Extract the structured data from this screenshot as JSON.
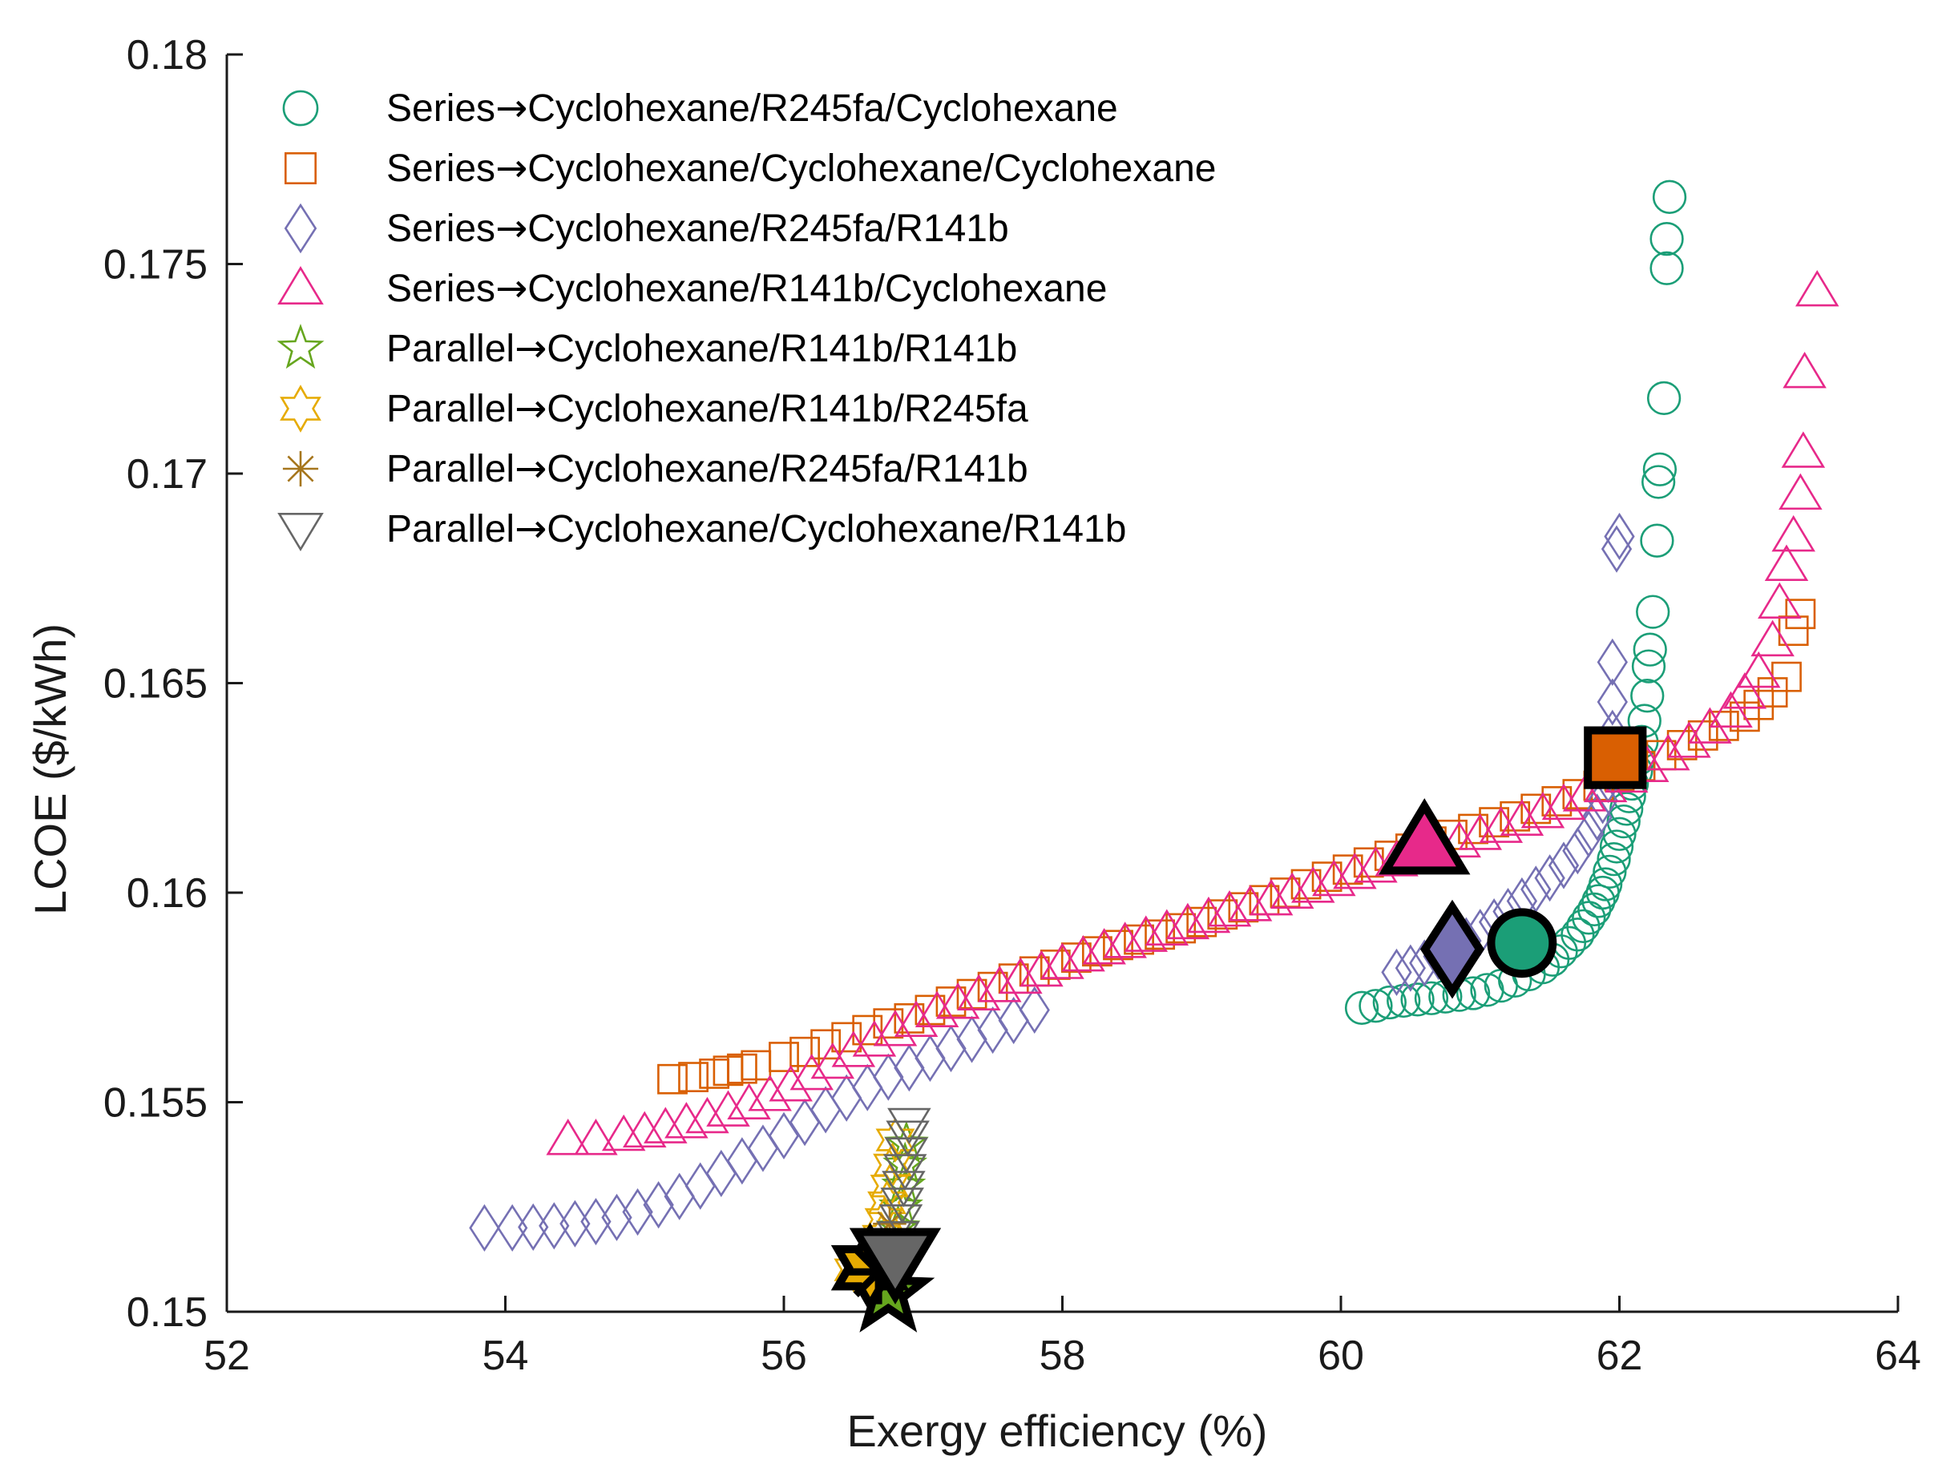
{
  "chart_data": {
    "type": "scatter",
    "title": "",
    "xlabel": "Exergy efficiency (%)",
    "ylabel": "LCOE ($/kWh)",
    "xlim": [
      52,
      64
    ],
    "ylim": [
      0.15,
      0.18
    ],
    "x_ticks": [
      52,
      54,
      56,
      58,
      60,
      62,
      64
    ],
    "x_tick_labels": [
      "52",
      "54",
      "56",
      "58",
      "60",
      "62",
      "64"
    ],
    "y_ticks": [
      0.15,
      0.155,
      0.16,
      0.165,
      0.17,
      0.175,
      0.18
    ],
    "y_tick_labels": [
      "0.15",
      "0.155",
      "0.16",
      "0.165",
      "0.17",
      "0.175",
      "0.18"
    ],
    "grid": false,
    "legend_position": "top-left",
    "legend_arrow": "→",
    "series": [
      {
        "name": "Series→Cyclohexane/R245fa/Cyclohexane",
        "legend_prefix": "Series",
        "legend_suffix": "Cyclohexane/R245fa/Cyclohexane",
        "marker": "circle",
        "color": "#1b9e77",
        "points": [
          [
            60.15,
            0.15725
          ],
          [
            60.25,
            0.1573
          ],
          [
            60.35,
            0.15738
          ],
          [
            60.45,
            0.15742
          ],
          [
            60.55,
            0.15745
          ],
          [
            60.65,
            0.15748
          ],
          [
            60.75,
            0.15752
          ],
          [
            60.85,
            0.15756
          ],
          [
            60.95,
            0.1576
          ],
          [
            61.05,
            0.15768
          ],
          [
            61.15,
            0.15778
          ],
          [
            61.25,
            0.1579
          ],
          [
            61.35,
            0.15805
          ],
          [
            61.45,
            0.15822
          ],
          [
            61.52,
            0.1584
          ],
          [
            61.58,
            0.1586
          ],
          [
            61.64,
            0.1588
          ],
          [
            61.7,
            0.159
          ],
          [
            61.74,
            0.1592
          ],
          [
            61.78,
            0.1594
          ],
          [
            61.82,
            0.1596
          ],
          [
            61.85,
            0.1598
          ],
          [
            61.88,
            0.16
          ],
          [
            61.9,
            0.1602
          ],
          [
            61.93,
            0.1605
          ],
          [
            61.96,
            0.1608
          ],
          [
            61.98,
            0.1611
          ],
          [
            62.0,
            0.1614
          ],
          [
            62.03,
            0.1617
          ],
          [
            62.05,
            0.162
          ],
          [
            62.07,
            0.1623
          ],
          [
            62.09,
            0.1626
          ],
          [
            62.12,
            0.1629
          ],
          [
            62.14,
            0.1632
          ],
          [
            62.16,
            0.1636
          ],
          [
            62.18,
            0.1641
          ],
          [
            62.2,
            0.1647
          ],
          [
            62.21,
            0.1654
          ],
          [
            62.22,
            0.1658
          ],
          [
            62.24,
            0.1667
          ],
          [
            62.27,
            0.1684
          ],
          [
            62.28,
            0.1698
          ],
          [
            62.29,
            0.1701
          ],
          [
            62.32,
            0.1718
          ],
          [
            62.34,
            0.1749
          ],
          [
            62.34,
            0.1756
          ],
          [
            62.36,
            0.1766
          ]
        ],
        "highlight": [
          61.3,
          0.1588
        ]
      },
      {
        "name": "Series→Cyclohexane/Cyclohexane/Cyclohexane",
        "legend_prefix": "Series",
        "legend_suffix": "Cyclohexane/Cyclohexane/Cyclohexane",
        "marker": "square",
        "color": "#d95f02",
        "points": [
          [
            55.2,
            0.15555
          ],
          [
            55.35,
            0.1556
          ],
          [
            55.5,
            0.15568
          ],
          [
            55.6,
            0.15575
          ],
          [
            55.7,
            0.1558
          ],
          [
            55.8,
            0.15588
          ],
          [
            56.0,
            0.15608
          ],
          [
            56.15,
            0.1562
          ],
          [
            56.3,
            0.15638
          ],
          [
            56.45,
            0.15655
          ],
          [
            56.6,
            0.15672
          ],
          [
            56.75,
            0.15688
          ],
          [
            56.9,
            0.157
          ],
          [
            57.05,
            0.1572
          ],
          [
            57.2,
            0.1574
          ],
          [
            57.35,
            0.15758
          ],
          [
            57.5,
            0.15775
          ],
          [
            57.65,
            0.15795
          ],
          [
            57.8,
            0.15812
          ],
          [
            57.95,
            0.15828
          ],
          [
            58.1,
            0.15845
          ],
          [
            58.25,
            0.1586
          ],
          [
            58.4,
            0.15875
          ],
          [
            58.55,
            0.15888
          ],
          [
            58.7,
            0.159
          ],
          [
            58.85,
            0.15915
          ],
          [
            59.0,
            0.1593
          ],
          [
            59.15,
            0.15948
          ],
          [
            59.3,
            0.15965
          ],
          [
            59.45,
            0.15982
          ],
          [
            59.6,
            0.16
          ],
          [
            59.75,
            0.1602
          ],
          [
            59.9,
            0.16038
          ],
          [
            60.05,
            0.16055
          ],
          [
            60.2,
            0.16072
          ],
          [
            60.35,
            0.16088
          ],
          [
            60.5,
            0.16105
          ],
          [
            60.65,
            0.16122
          ],
          [
            60.8,
            0.16138
          ],
          [
            60.95,
            0.16152
          ],
          [
            61.1,
            0.16168
          ],
          [
            61.25,
            0.16182
          ],
          [
            61.4,
            0.162
          ],
          [
            61.55,
            0.16218
          ],
          [
            61.7,
            0.16235
          ],
          [
            61.85,
            0.16255
          ],
          [
            62.0,
            0.16278
          ],
          [
            62.15,
            0.16302
          ],
          [
            62.3,
            0.16328
          ],
          [
            62.45,
            0.16352
          ],
          [
            62.6,
            0.16375
          ],
          [
            62.75,
            0.16398
          ],
          [
            62.9,
            0.1642
          ],
          [
            63.0,
            0.16448
          ],
          [
            63.1,
            0.16478
          ],
          [
            63.2,
            0.16515
          ],
          [
            63.25,
            0.16625
          ],
          [
            63.3,
            0.16665
          ]
        ],
        "highlight": [
          61.97,
          0.16322
        ]
      },
      {
        "name": "Series→Cyclohexane/R245fa/R141b",
        "legend_prefix": "Series",
        "legend_suffix": "Cyclohexane/R245fa/R141b",
        "marker": "diamond",
        "color": "#7570b3",
        "points": [
          [
            53.85,
            0.152
          ],
          [
            54.05,
            0.152
          ],
          [
            54.2,
            0.15202
          ],
          [
            54.35,
            0.15205
          ],
          [
            54.5,
            0.1521
          ],
          [
            54.65,
            0.15215
          ],
          [
            54.8,
            0.15225
          ],
          [
            54.95,
            0.15238
          ],
          [
            55.1,
            0.15255
          ],
          [
            55.25,
            0.15275
          ],
          [
            55.4,
            0.153
          ],
          [
            55.55,
            0.1533
          ],
          [
            55.7,
            0.1536
          ],
          [
            55.85,
            0.1539
          ],
          [
            56.0,
            0.1542
          ],
          [
            56.15,
            0.15452
          ],
          [
            56.3,
            0.15482
          ],
          [
            56.45,
            0.1551
          ],
          [
            56.6,
            0.15535
          ],
          [
            56.75,
            0.1556
          ],
          [
            56.9,
            0.15582
          ],
          [
            57.05,
            0.15605
          ],
          [
            57.2,
            0.15628
          ],
          [
            57.35,
            0.1565
          ],
          [
            57.5,
            0.15672
          ],
          [
            57.65,
            0.15695
          ],
          [
            57.8,
            0.1572
          ],
          [
            60.4,
            0.1581
          ],
          [
            60.5,
            0.1582
          ],
          [
            60.6,
            0.15832
          ],
          [
            60.7,
            0.15848
          ],
          [
            60.8,
            0.15865
          ],
          [
            60.9,
            0.15885
          ],
          [
            61.0,
            0.15905
          ],
          [
            61.1,
            0.1593
          ],
          [
            61.2,
            0.15955
          ],
          [
            61.3,
            0.1598
          ],
          [
            61.4,
            0.16008
          ],
          [
            61.5,
            0.16035
          ],
          [
            61.6,
            0.16065
          ],
          [
            61.7,
            0.161
          ],
          [
            61.78,
            0.1614
          ],
          [
            61.84,
            0.1618
          ],
          [
            61.88,
            0.1622
          ],
          [
            61.92,
            0.1627
          ],
          [
            61.95,
            0.1638
          ],
          [
            61.95,
            0.16455
          ],
          [
            61.95,
            0.1655
          ],
          [
            61.98,
            0.1682
          ],
          [
            62.0,
            0.1685
          ]
        ],
        "highlight": [
          60.8,
          0.15865
        ]
      },
      {
        "name": "Series→Cyclohexane/R141b/Cyclohexane",
        "legend_prefix": "Series",
        "legend_suffix": "Cyclohexane/R141b/Cyclohexane",
        "marker": "triangle-up",
        "color": "#e7298a",
        "points": [
          [
            54.45,
            0.1541
          ],
          [
            54.65,
            0.1541
          ],
          [
            54.85,
            0.1542
          ],
          [
            55.0,
            0.15428
          ],
          [
            55.15,
            0.15438
          ],
          [
            55.3,
            0.1545
          ],
          [
            55.45,
            0.15462
          ],
          [
            55.6,
            0.15478
          ],
          [
            55.75,
            0.15495
          ],
          [
            55.9,
            0.15515
          ],
          [
            56.05,
            0.15538
          ],
          [
            56.2,
            0.15565
          ],
          [
            56.35,
            0.15592
          ],
          [
            56.5,
            0.1562
          ],
          [
            56.65,
            0.15645
          ],
          [
            56.8,
            0.1567
          ],
          [
            56.95,
            0.15692
          ],
          [
            57.1,
            0.15715
          ],
          [
            57.25,
            0.15735
          ],
          [
            57.4,
            0.15755
          ],
          [
            57.55,
            0.15775
          ],
          [
            57.7,
            0.15795
          ],
          [
            57.85,
            0.15812
          ],
          [
            58.0,
            0.1583
          ],
          [
            58.15,
            0.15848
          ],
          [
            58.3,
            0.15865
          ],
          [
            58.45,
            0.1588
          ],
          [
            58.6,
            0.15895
          ],
          [
            58.75,
            0.1591
          ],
          [
            58.9,
            0.15925
          ],
          [
            59.05,
            0.1594
          ],
          [
            59.2,
            0.15955
          ],
          [
            59.35,
            0.15968
          ],
          [
            59.5,
            0.15982
          ],
          [
            59.65,
            0.15998
          ],
          [
            59.8,
            0.16012
          ],
          [
            59.95,
            0.16028
          ],
          [
            60.1,
            0.16045
          ],
          [
            60.25,
            0.1606
          ],
          [
            60.4,
            0.16075
          ],
          [
            60.55,
            0.1609
          ],
          [
            60.7,
            0.16105
          ],
          [
            60.85,
            0.1612
          ],
          [
            61.0,
            0.16138
          ],
          [
            61.15,
            0.16155
          ],
          [
            61.3,
            0.16172
          ],
          [
            61.45,
            0.1619
          ],
          [
            61.6,
            0.1621
          ],
          [
            61.75,
            0.1623
          ],
          [
            61.9,
            0.16252
          ],
          [
            62.05,
            0.16275
          ],
          [
            62.2,
            0.163
          ],
          [
            62.35,
            0.16328
          ],
          [
            62.5,
            0.16358
          ],
          [
            62.65,
            0.16392
          ],
          [
            62.8,
            0.1643
          ],
          [
            62.9,
            0.16475
          ],
          [
            63.0,
            0.16525
          ],
          [
            63.1,
            0.166
          ],
          [
            63.15,
            0.1669
          ],
          [
            63.2,
            0.1678
          ],
          [
            63.25,
            0.1685
          ],
          [
            63.3,
            0.1695
          ],
          [
            63.32,
            0.1705
          ],
          [
            63.33,
            0.1724
          ],
          [
            63.42,
            0.17435
          ]
        ],
        "highlight": [
          60.6,
          0.16118
        ]
      },
      {
        "name": "Parallel→Cyclohexane/R141b/R141b",
        "legend_prefix": "Parallel",
        "legend_suffix": "Cyclohexane/R141b/R141b",
        "marker": "star5",
        "color": "#66a61e",
        "points": [
          [
            56.75,
            0.1506
          ],
          [
            56.78,
            0.151
          ],
          [
            56.8,
            0.1515
          ],
          [
            56.82,
            0.152
          ],
          [
            56.84,
            0.1525
          ],
          [
            56.86,
            0.153
          ],
          [
            56.87,
            0.1535
          ],
          [
            56.88,
            0.154
          ]
        ],
        "highlight": [
          56.75,
          0.15045
        ]
      },
      {
        "name": "Parallel→Cyclohexane/R141b/R245fa",
        "legend_prefix": "Parallel",
        "legend_suffix": "Cyclohexane/R141b/R245fa",
        "marker": "star6",
        "color": "#e6ab02",
        "points": [
          [
            56.5,
            0.151
          ],
          [
            56.55,
            0.15105
          ],
          [
            56.6,
            0.15115
          ],
          [
            56.65,
            0.1513
          ],
          [
            56.7,
            0.1518
          ],
          [
            56.72,
            0.1522
          ],
          [
            56.74,
            0.1526
          ],
          [
            56.76,
            0.153
          ],
          [
            56.78,
            0.1535
          ],
          [
            56.8,
            0.1541
          ]
        ],
        "highlight": [
          56.62,
          0.15105
        ]
      },
      {
        "name": "Parallel→Cyclohexane/R245fa/R141b",
        "legend_prefix": "Parallel",
        "legend_suffix": "Cyclohexane/R245fa/R141b",
        "marker": "asterisk",
        "color": "#a6761d",
        "points": [
          [
            56.6,
            0.151
          ],
          [
            56.68,
            0.1512
          ],
          [
            56.72,
            0.1515
          ],
          [
            56.76,
            0.1521
          ]
        ],
        "highlight": [
          56.68,
          0.15095
        ]
      },
      {
        "name": "Parallel→Cyclohexane/Cyclohexane/R141b",
        "legend_prefix": "Parallel",
        "legend_suffix": "Cyclohexane/Cyclohexane/R141b",
        "marker": "triangle-down",
        "color": "#666666",
        "points": [
          [
            56.8,
            0.1514
          ],
          [
            56.82,
            0.1518
          ],
          [
            56.84,
            0.1522
          ],
          [
            56.85,
            0.1526
          ],
          [
            56.86,
            0.153
          ],
          [
            56.87,
            0.1534
          ],
          [
            56.88,
            0.1538
          ],
          [
            56.89,
            0.1542
          ],
          [
            56.9,
            0.1545
          ]
        ],
        "highlight": [
          56.8,
          0.15125
        ]
      }
    ]
  }
}
